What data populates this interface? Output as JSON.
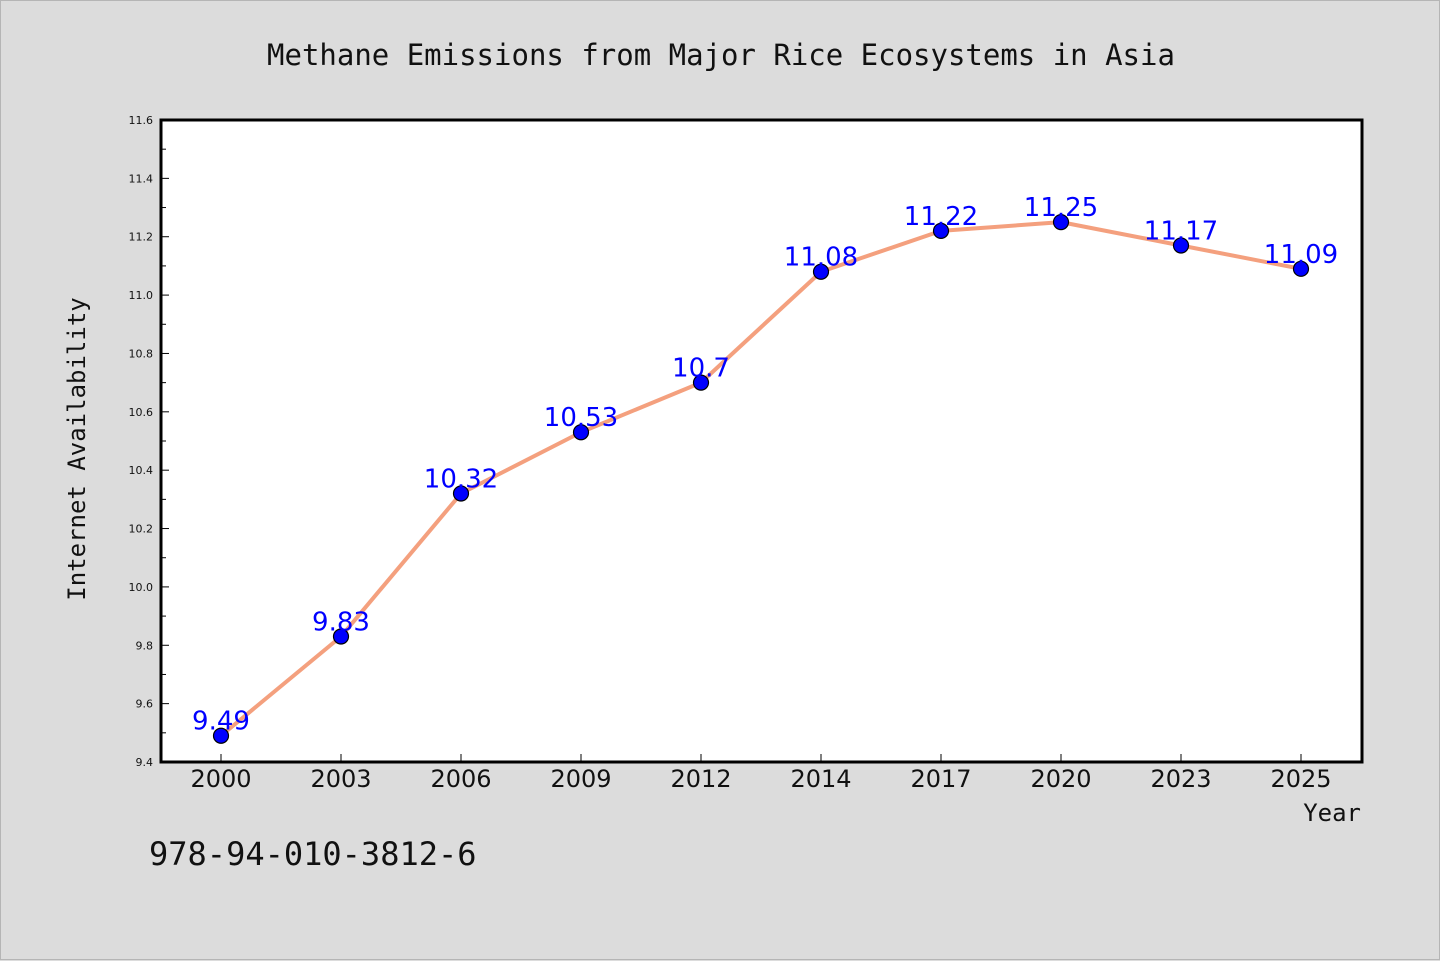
{
  "chart_data": {
    "type": "line",
    "title": "Methane Emissions from Major Rice Ecosystems in Asia",
    "xlabel": "Year",
    "ylabel": "Internet Availability",
    "categories": [
      "2000",
      "2003",
      "2006",
      "2009",
      "2012",
      "2014",
      "2017",
      "2020",
      "2023",
      "2025"
    ],
    "series": [
      {
        "values": [
          9.49,
          9.83,
          10.32,
          10.53,
          10.7,
          11.08,
          11.22,
          11.25,
          11.17,
          11.09
        ]
      }
    ],
    "data_labels": [
      "9.49",
      "9.83",
      "10.32",
      "10.53",
      "10.7",
      "11.08",
      "11.22",
      "11.25",
      "11.17",
      "11.09"
    ],
    "ylim": [
      9.4,
      11.6
    ],
    "yticks": [
      "9.4",
      "9.6",
      "9.8",
      "10.0",
      "10.2",
      "10.4",
      "10.6",
      "10.8",
      "11.0",
      "11.2",
      "11.4",
      "11.6"
    ],
    "grid": false,
    "line_color": "#f4a07e",
    "marker_color": "#0000ff",
    "label_color": "#0000ff",
    "background": "#dcdcdc",
    "plot_background": "#ffffff"
  },
  "annotation": "978-94-010-3812-6"
}
